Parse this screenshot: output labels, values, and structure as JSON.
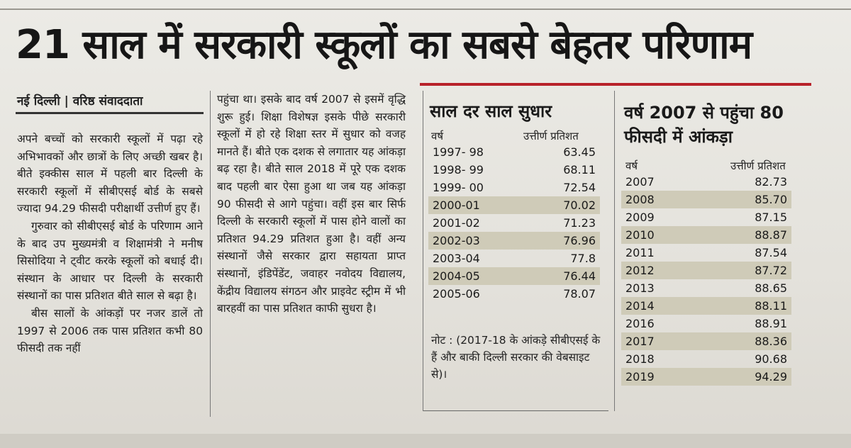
{
  "headline": "21 साल में सरकारी स्कूलों का सबसे बेहतर परिणाम",
  "byline": "नई दिल्ली | वरिष्ठ संवाददाता",
  "article": {
    "col1": [
      "अपने बच्चों को सरकारी स्कूलों में पढ़ा रहे अभिभावकों और छात्रों के लिए अच्छी खबर है। बीते इक्कीस साल में पहली बार दिल्ली के सरकारी स्कूलों में सीबीएसई बोर्ड के सबसे ज्यादा 94.29 फीसदी परीक्षार्थी उत्तीर्ण हुए हैं।",
      "गुरुवार को सीबीएसई बोर्ड के परिणाम आने के बाद उप मुख्यमंत्री व शिक्षामंत्री ने मनीष सिसोदिया ने ट्वीट करके स्कूलों को बधाई दी। संस्थान के आधार पर दिल्ली के सरकारी संस्थानों का पास प्रतिशत बीते साल से बढ़ा है।",
      "बीस सालों के आंकड़ों पर नजर डालें तो 1997 से 2006 तक पास प्रतिशत कभी 80 फीसदी तक नहीं"
    ],
    "col2": [
      "पहुंचा था। इसके बाद वर्ष 2007 से इसमें वृद्धि शुरू हुई। शिक्षा विशेषज्ञ इसके पीछे सरकारी स्कूलों में हो रहे शिक्षा स्तर में सुधार को वजह मानते हैं। बीते एक दशक से लगातार यह आंकड़ा बढ़ रहा है। बीते साल 2018 में पूरे एक दशक बाद पहली बार ऐसा हुआ था जब यह आंकड़ा 90 फीसदी से आगे पहुंचा। वहीं इस बार सिर्फ दिल्ली के सरकारी स्कूलों में पास होने वालों का प्रतिशत 94.29 प्रतिशत हुआ है। वहीं अन्य संस्थानों जैसे सरकार द्वारा सहायता प्राप्त संस्थानों, इंडिपेंडेंट, जवाहर नवोदय विद्यालय, केंद्रीय विद्यालय संगठन और प्राइवेट स्ट्रीम में भी बारहवीं का पास प्रतिशत काफी सुधरा है।"
    ]
  },
  "table1": {
    "title": "साल दर साल सुधार",
    "col_year": "वर्ष",
    "col_pct": "उत्तीर्ण प्रतिशत",
    "rows": [
      {
        "year": "1997- 98",
        "pct": "63.45"
      },
      {
        "year": "1998- 99",
        "pct": "68.11"
      },
      {
        "year": "1999- 00",
        "pct": "72.54"
      },
      {
        "year": "2000-01",
        "pct": "70.02"
      },
      {
        "year": "2001-02",
        "pct": "71.23"
      },
      {
        "year": "2002-03",
        "pct": "76.96"
      },
      {
        "year": "2003-04",
        "pct": "77.8"
      },
      {
        "year": "2004-05",
        "pct": "76.44"
      },
      {
        "year": "2005-06",
        "pct": "78.07"
      }
    ],
    "note": "नोट : (2017-18 के आंकड़े सीबीएसई के हैं और बाकी दिल्ली सरकार की वेबसाइट से)।"
  },
  "table2": {
    "title_line1": "वर्ष 2007 से पहुंचा 80",
    "title_line2": "फीसदी में आंकड़ा",
    "col_year": "वर्ष",
    "col_pct": "उत्तीर्ण प्रतिशत",
    "rows": [
      {
        "year": "2007",
        "pct": "82.73"
      },
      {
        "year": "2008",
        "pct": "85.70"
      },
      {
        "year": "2009",
        "pct": "87.15"
      },
      {
        "year": "2010",
        "pct": "88.87"
      },
      {
        "year": "2011",
        "pct": "87.54"
      },
      {
        "year": "2012",
        "pct": "87.72"
      },
      {
        "year": "2013",
        "pct": "88.65"
      },
      {
        "year": "2014",
        "pct": "88.11"
      },
      {
        "year": "2016",
        "pct": "88.91"
      },
      {
        "year": "2017",
        "pct": "88.36"
      },
      {
        "year": "2018",
        "pct": "90.68"
      },
      {
        "year": "2019",
        "pct": "94.29"
      }
    ]
  },
  "colors": {
    "accent_rule": "#b8222a",
    "row_shade": "#cfcbb8"
  }
}
